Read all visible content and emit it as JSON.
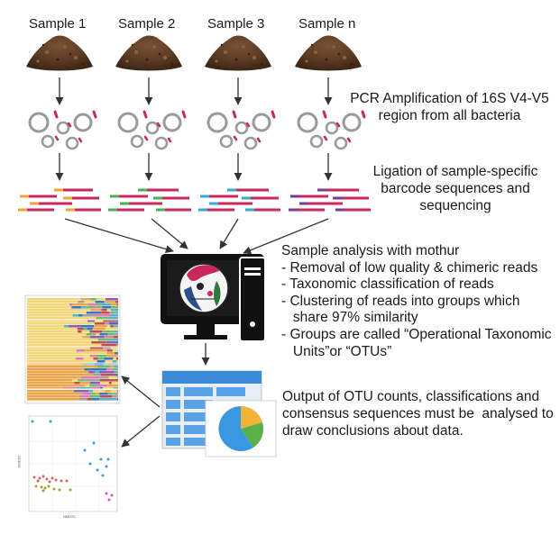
{
  "samples": [
    "Sample 1",
    "Sample 2",
    "Sample 3",
    "Sample n"
  ],
  "steps": {
    "pcr": [
      "PCR Amplification of 16S V4-V5",
      "region from all bacteria"
    ],
    "ligation": [
      "Ligation of sample-specific",
      "barcode sequences and",
      "sequencing"
    ]
  },
  "analysis": {
    "title": "Sample analysis with mothur",
    "items": [
      "- Removal of low quality & chimeric reads",
      "- Taxonomic classification of reads",
      "- Clustering of reads into groups which",
      "   share 97% similarity",
      "- Groups are called “Operational Taxonomic",
      "   Units”or “OTUs”"
    ]
  },
  "output": [
    "Output of OTU counts, classifications and",
    "consensus sequences must be  analysed to",
    "draw conclusions about data."
  ],
  "mini_plot": {
    "xlabel": "NMDS1",
    "ylabel": "NMDS2"
  },
  "icons": [
    "soil-pile-icon",
    "plasmid-icon",
    "barcode-reads-icon",
    "computer-icon",
    "spreadsheet-pie-icon",
    "bar-plot-thumbnail",
    "scatter-plot-thumbnail"
  ],
  "colors": {
    "soil": "#5a3a22",
    "arrow": "#333333",
    "plasmid": "#9a9a9a",
    "insert": "#c8285a",
    "read": "#c8285a",
    "barcode_1": "#f2a23a",
    "barcode_2": "#4caf50",
    "barcode_3": "#3aa7d8",
    "barcode_n": "#7a3a96",
    "monitor": "#111111"
  }
}
